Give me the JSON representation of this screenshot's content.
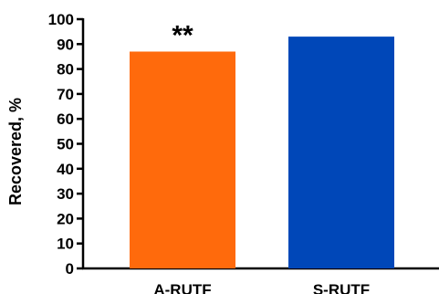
{
  "chart_data": {
    "type": "bar",
    "categories": [
      "A-RUTF",
      "S-RUTF"
    ],
    "values": [
      87,
      93
    ],
    "colors": [
      "#ff6a0c",
      "#0047b8"
    ],
    "ylabel": "Recovered, %",
    "xlabel": "",
    "ylim": [
      0,
      100
    ],
    "yticks": [
      0,
      10,
      20,
      30,
      40,
      50,
      60,
      70,
      80,
      90,
      100
    ],
    "grid": false,
    "annotations": [
      {
        "category": "A-RUTF",
        "text": "**"
      }
    ]
  }
}
